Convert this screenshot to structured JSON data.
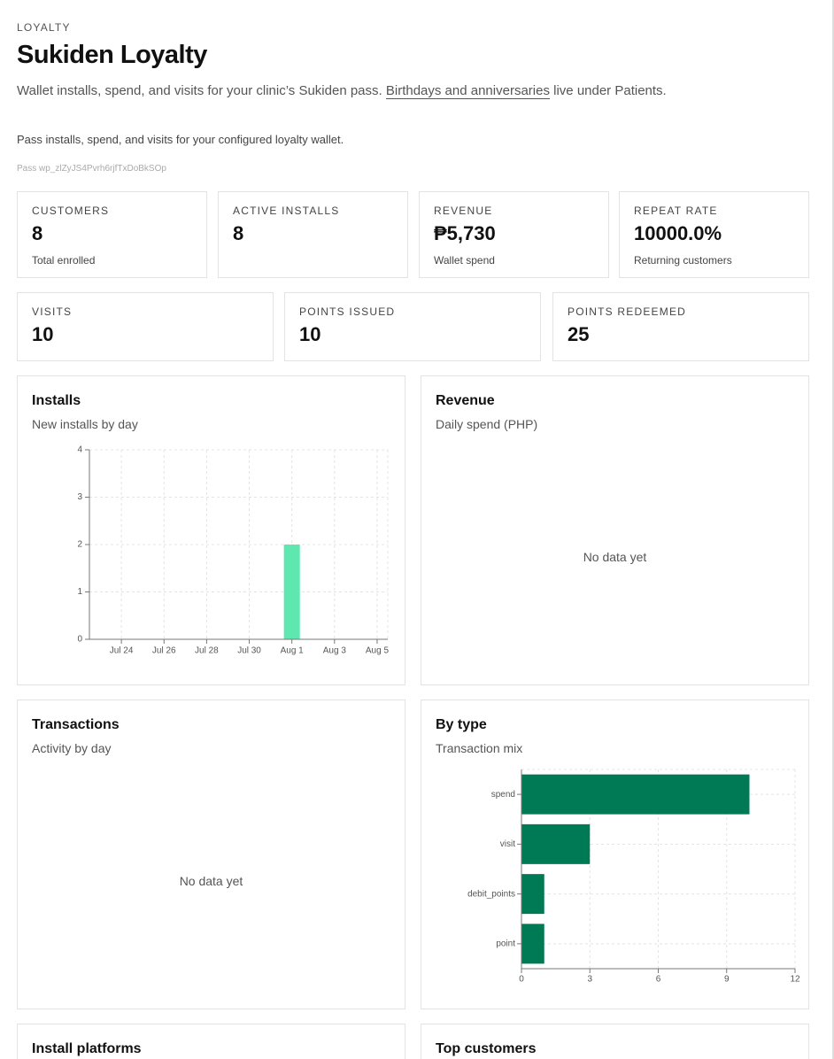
{
  "header": {
    "eyebrow": "LOYALTY",
    "title": "Sukiden Loyalty",
    "description": "Wallet installs, spend, and visits for your clinic’s Sukiden pass.",
    "link": "Birthdays and anniversaries",
    "description_end": "live under Patients.",
    "subtitle": "Pass installs, spend, and visits for your configured loyalty wallet.",
    "pass_id": "Pass wp_zlZyJS4Pvrh6rjfTxDoBkSOp"
  },
  "stats": [
    {
      "label": "CUSTOMERS",
      "value": "8",
      "note": "Total enrolled"
    },
    {
      "label": "ACTIVE INSTALLS",
      "value": "8"
    },
    {
      "label": "REVENUE",
      "value": "₱5,730",
      "note": "Wallet spend"
    },
    {
      "label": "REPEAT RATE",
      "value": "10000.0%",
      "note": "Returning customers"
    }
  ],
  "stats_row2": [
    {
      "label": "VISITS",
      "value": "10"
    },
    {
      "label": "POINTS ISSUED",
      "value": "10"
    },
    {
      "label": "POINTS REDEEMED",
      "value": "25"
    }
  ],
  "chart_data": [
    {
      "type": "bar",
      "title": "Installs",
      "subtitle": "New installs by day",
      "categories": [
        null,
        "Jul 24",
        null,
        "Jul 26",
        null,
        "Jul 28",
        null,
        "Jul 30",
        null,
        "Aug 1",
        null,
        "Aug 3",
        null,
        "Aug 5"
      ],
      "values": [
        0,
        0,
        0,
        0,
        0,
        0,
        0,
        0,
        0,
        2,
        0,
        0,
        0,
        0
      ],
      "color": "#5ee8b0",
      "ylim": [
        0,
        4
      ],
      "yticks": [
        0,
        1,
        2,
        3,
        4
      ],
      "grid": true
    },
    {
      "title": "Revenue",
      "subtitle": "Daily spend (PHP)",
      "message": "No data yet"
    },
    {
      "title": "Transactions",
      "subtitle": "Activity by day",
      "message": "No data yet"
    },
    {
      "type": "hbar",
      "title": "By type",
      "subtitle": "Transaction mix",
      "categories": [
        "spend",
        "visit",
        "debit_points",
        "point"
      ],
      "values": [
        10,
        3,
        1,
        1
      ],
      "color": "#007a55",
      "xlim": [
        0,
        12
      ],
      "xticks": [
        0,
        3,
        6,
        9,
        12
      ],
      "grid": true
    }
  ],
  "panels": [
    {
      "title": "Install platforms"
    },
    {
      "title": "Top customers"
    }
  ]
}
